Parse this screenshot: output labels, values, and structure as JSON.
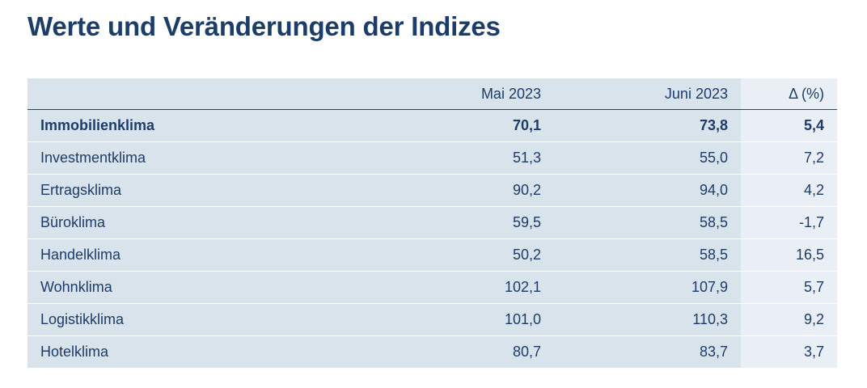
{
  "title": "Werte und Veränderungen der Indizes",
  "table": {
    "headers": [
      "",
      "Mai 2023",
      "Juni 2023",
      "Δ (%)"
    ],
    "rows": [
      [
        "Immobilienklima",
        "70,1",
        "73,8",
        "5,4"
      ],
      [
        "Investmentklima",
        "51,3",
        "55,0",
        "7,2"
      ],
      [
        "Ertragsklima",
        "90,2",
        "94,0",
        "4,2"
      ],
      [
        "Büroklima",
        "59,5",
        "58,5",
        "-1,7"
      ],
      [
        "Handelklima",
        "50,2",
        "58,5",
        "16,5"
      ],
      [
        "Wohnklima",
        "102,1",
        "107,9",
        "5,7"
      ],
      [
        "Logistikklima",
        "101,0",
        "110,3",
        "9,2"
      ],
      [
        "Hotelklima",
        "80,7",
        "83,7",
        "3,7"
      ]
    ]
  }
}
